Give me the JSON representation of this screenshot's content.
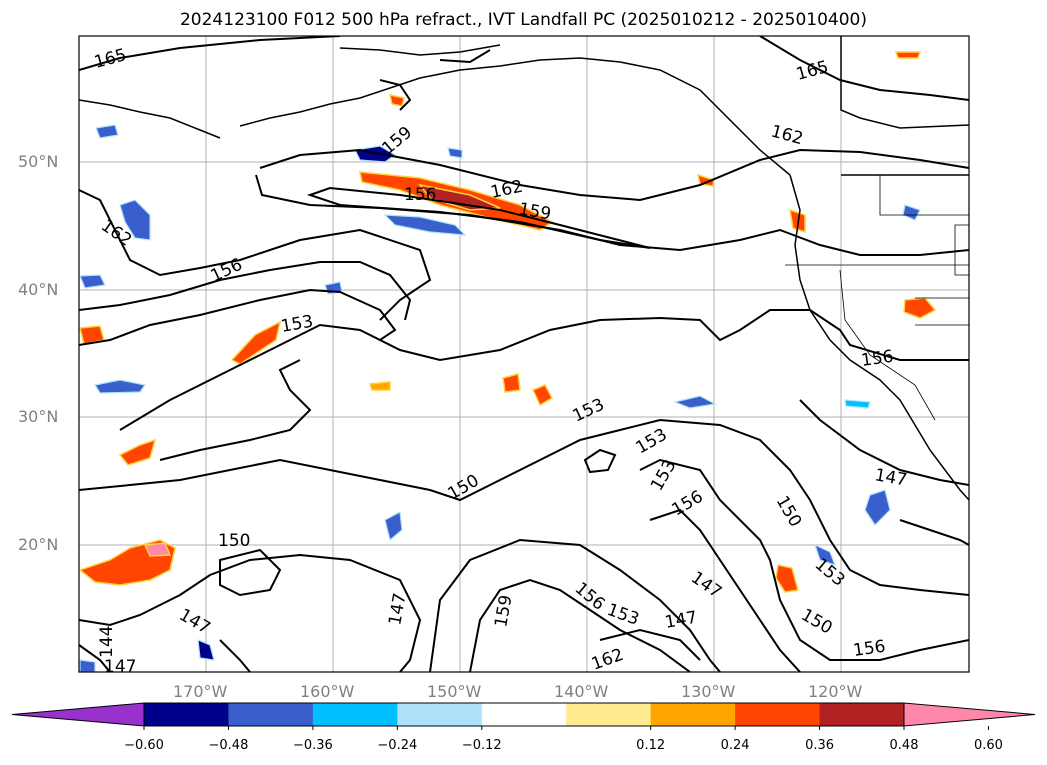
{
  "title": "2024123100 F012 500 hPa refract., IVT Landfall PC (2025010212 - 2025010400)",
  "lat_labels": [
    "50°N",
    "40°N",
    "30°N",
    "20°N"
  ],
  "lon_labels": [
    "170°W",
    "160°W",
    "150°W",
    "140°W",
    "130°W",
    "120°W"
  ],
  "contour_labels": [
    {
      "text": "165",
      "id": "nw"
    },
    {
      "text": "165",
      "id": "ne"
    },
    {
      "text": "162",
      "id": "ne2"
    },
    {
      "text": "159",
      "id": "aleut"
    },
    {
      "text": "156",
      "id": "jet1"
    },
    {
      "text": "162",
      "id": "jet2"
    },
    {
      "text": "159",
      "id": "jet3"
    },
    {
      "text": "162",
      "id": "west"
    },
    {
      "text": "156",
      "id": "west2"
    },
    {
      "text": "153",
      "id": "west3"
    },
    {
      "text": "156",
      "id": "coast"
    },
    {
      "text": "153",
      "id": "mid1"
    },
    {
      "text": "153",
      "id": "mid2"
    },
    {
      "text": "150",
      "id": "mid3"
    },
    {
      "text": "153",
      "id": "mid4"
    },
    {
      "text": "156",
      "id": "mid5"
    },
    {
      "text": "150",
      "id": "se1"
    },
    {
      "text": "147",
      "id": "se2"
    },
    {
      "text": "153",
      "id": "se3"
    },
    {
      "text": "150",
      "id": "sw1"
    },
    {
      "text": "147",
      "id": "sw2"
    },
    {
      "text": "144",
      "id": "sw3"
    },
    {
      "text": "147",
      "id": "sw4"
    },
    {
      "text": "147",
      "id": "s1"
    },
    {
      "text": "159",
      "id": "s2"
    },
    {
      "text": "156",
      "id": "s3"
    },
    {
      "text": "153",
      "id": "s4"
    },
    {
      "text": "147",
      "id": "s5"
    },
    {
      "text": "147",
      "id": "s6"
    },
    {
      "text": "150",
      "id": "s7"
    },
    {
      "text": "162",
      "id": "s8"
    },
    {
      "text": "156",
      "id": "s9"
    }
  ],
  "colorbar": {
    "ticks": [
      "−0.60",
      "−0.48",
      "−0.36",
      "−0.24",
      "−0.12",
      "0.12",
      "0.24",
      "0.36",
      "0.48",
      "0.60"
    ],
    "colors": [
      "#9932cc",
      "#00008b",
      "#3a5fcd",
      "#00bfff",
      "#aee2fa",
      "#ffffff",
      "#ffea8f",
      "#ffa500",
      "#ff4500",
      "#b22222",
      "#ff88aa"
    ]
  }
}
